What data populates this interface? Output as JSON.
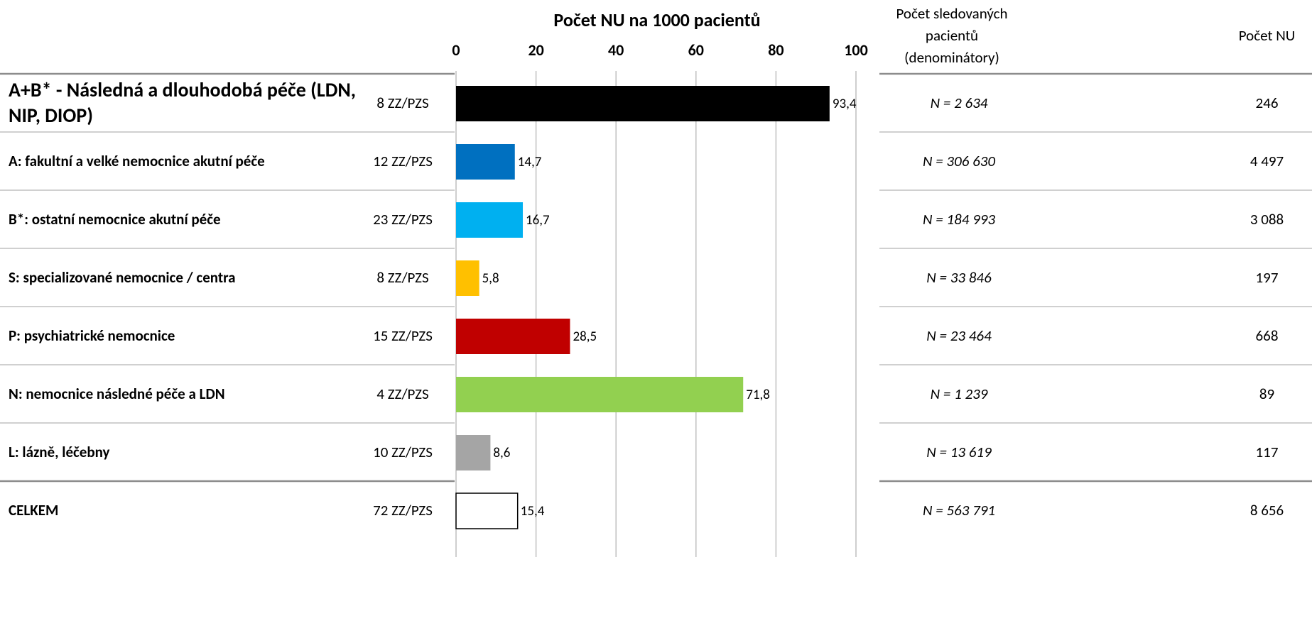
{
  "chart_data": {
    "type": "bar",
    "orientation": "horizontal",
    "title": "Počet NU na 1000 pacientů",
    "categories": [
      "A+B* - Následná a dlouhodobá péče (LDN, NIP, DIOP)",
      "A: fakultní a velké nemocnice akutní péče",
      "B*: ostatní nemocnice akutní péče",
      "S: specializované nemocnice / centra",
      "P: psychiatrické nemocnice",
      "N: nemocnice následné péče a LDN",
      "L: lázně, léčebny",
      "CELKEM"
    ],
    "facility_counts": [
      "8 ZZ/PZS",
      "12 ZZ/PZS",
      "23 ZZ/PZS",
      "8 ZZ/PZS",
      "15 ZZ/PZS",
      "4 ZZ/PZS",
      "10 ZZ/PZS",
      "72 ZZ/PZS"
    ],
    "values": [
      93.4,
      14.7,
      16.7,
      5.8,
      28.5,
      71.8,
      8.6,
      15.4
    ],
    "value_labels": [
      "93,4",
      "14,7",
      "16,7",
      "5,8",
      "28,5",
      "71,8",
      "8,6",
      "15,4"
    ],
    "colors": [
      "#000000",
      "#0070c0",
      "#00b0f0",
      "#ffc000",
      "#c00000",
      "#92d050",
      "#a5a5a5",
      "#ffffff"
    ],
    "xlim": [
      0,
      100
    ],
    "xticks": [
      0,
      20,
      40,
      60,
      80,
      100
    ],
    "grid": true,
    "table": {
      "headers": [
        "Počet sledovaných pacientů (denominátory)",
        "Počet NU"
      ],
      "denominators": [
        "N = 2 634",
        "N = 306 630",
        "N = 184 993",
        "N = 33 846",
        "N = 23 464",
        "N = 1 239",
        "N = 13 619",
        "N = 563 791"
      ],
      "nu_counts": [
        "246",
        "4 497",
        "3 088",
        "197",
        "668",
        "89",
        "117",
        "8 656"
      ]
    }
  }
}
